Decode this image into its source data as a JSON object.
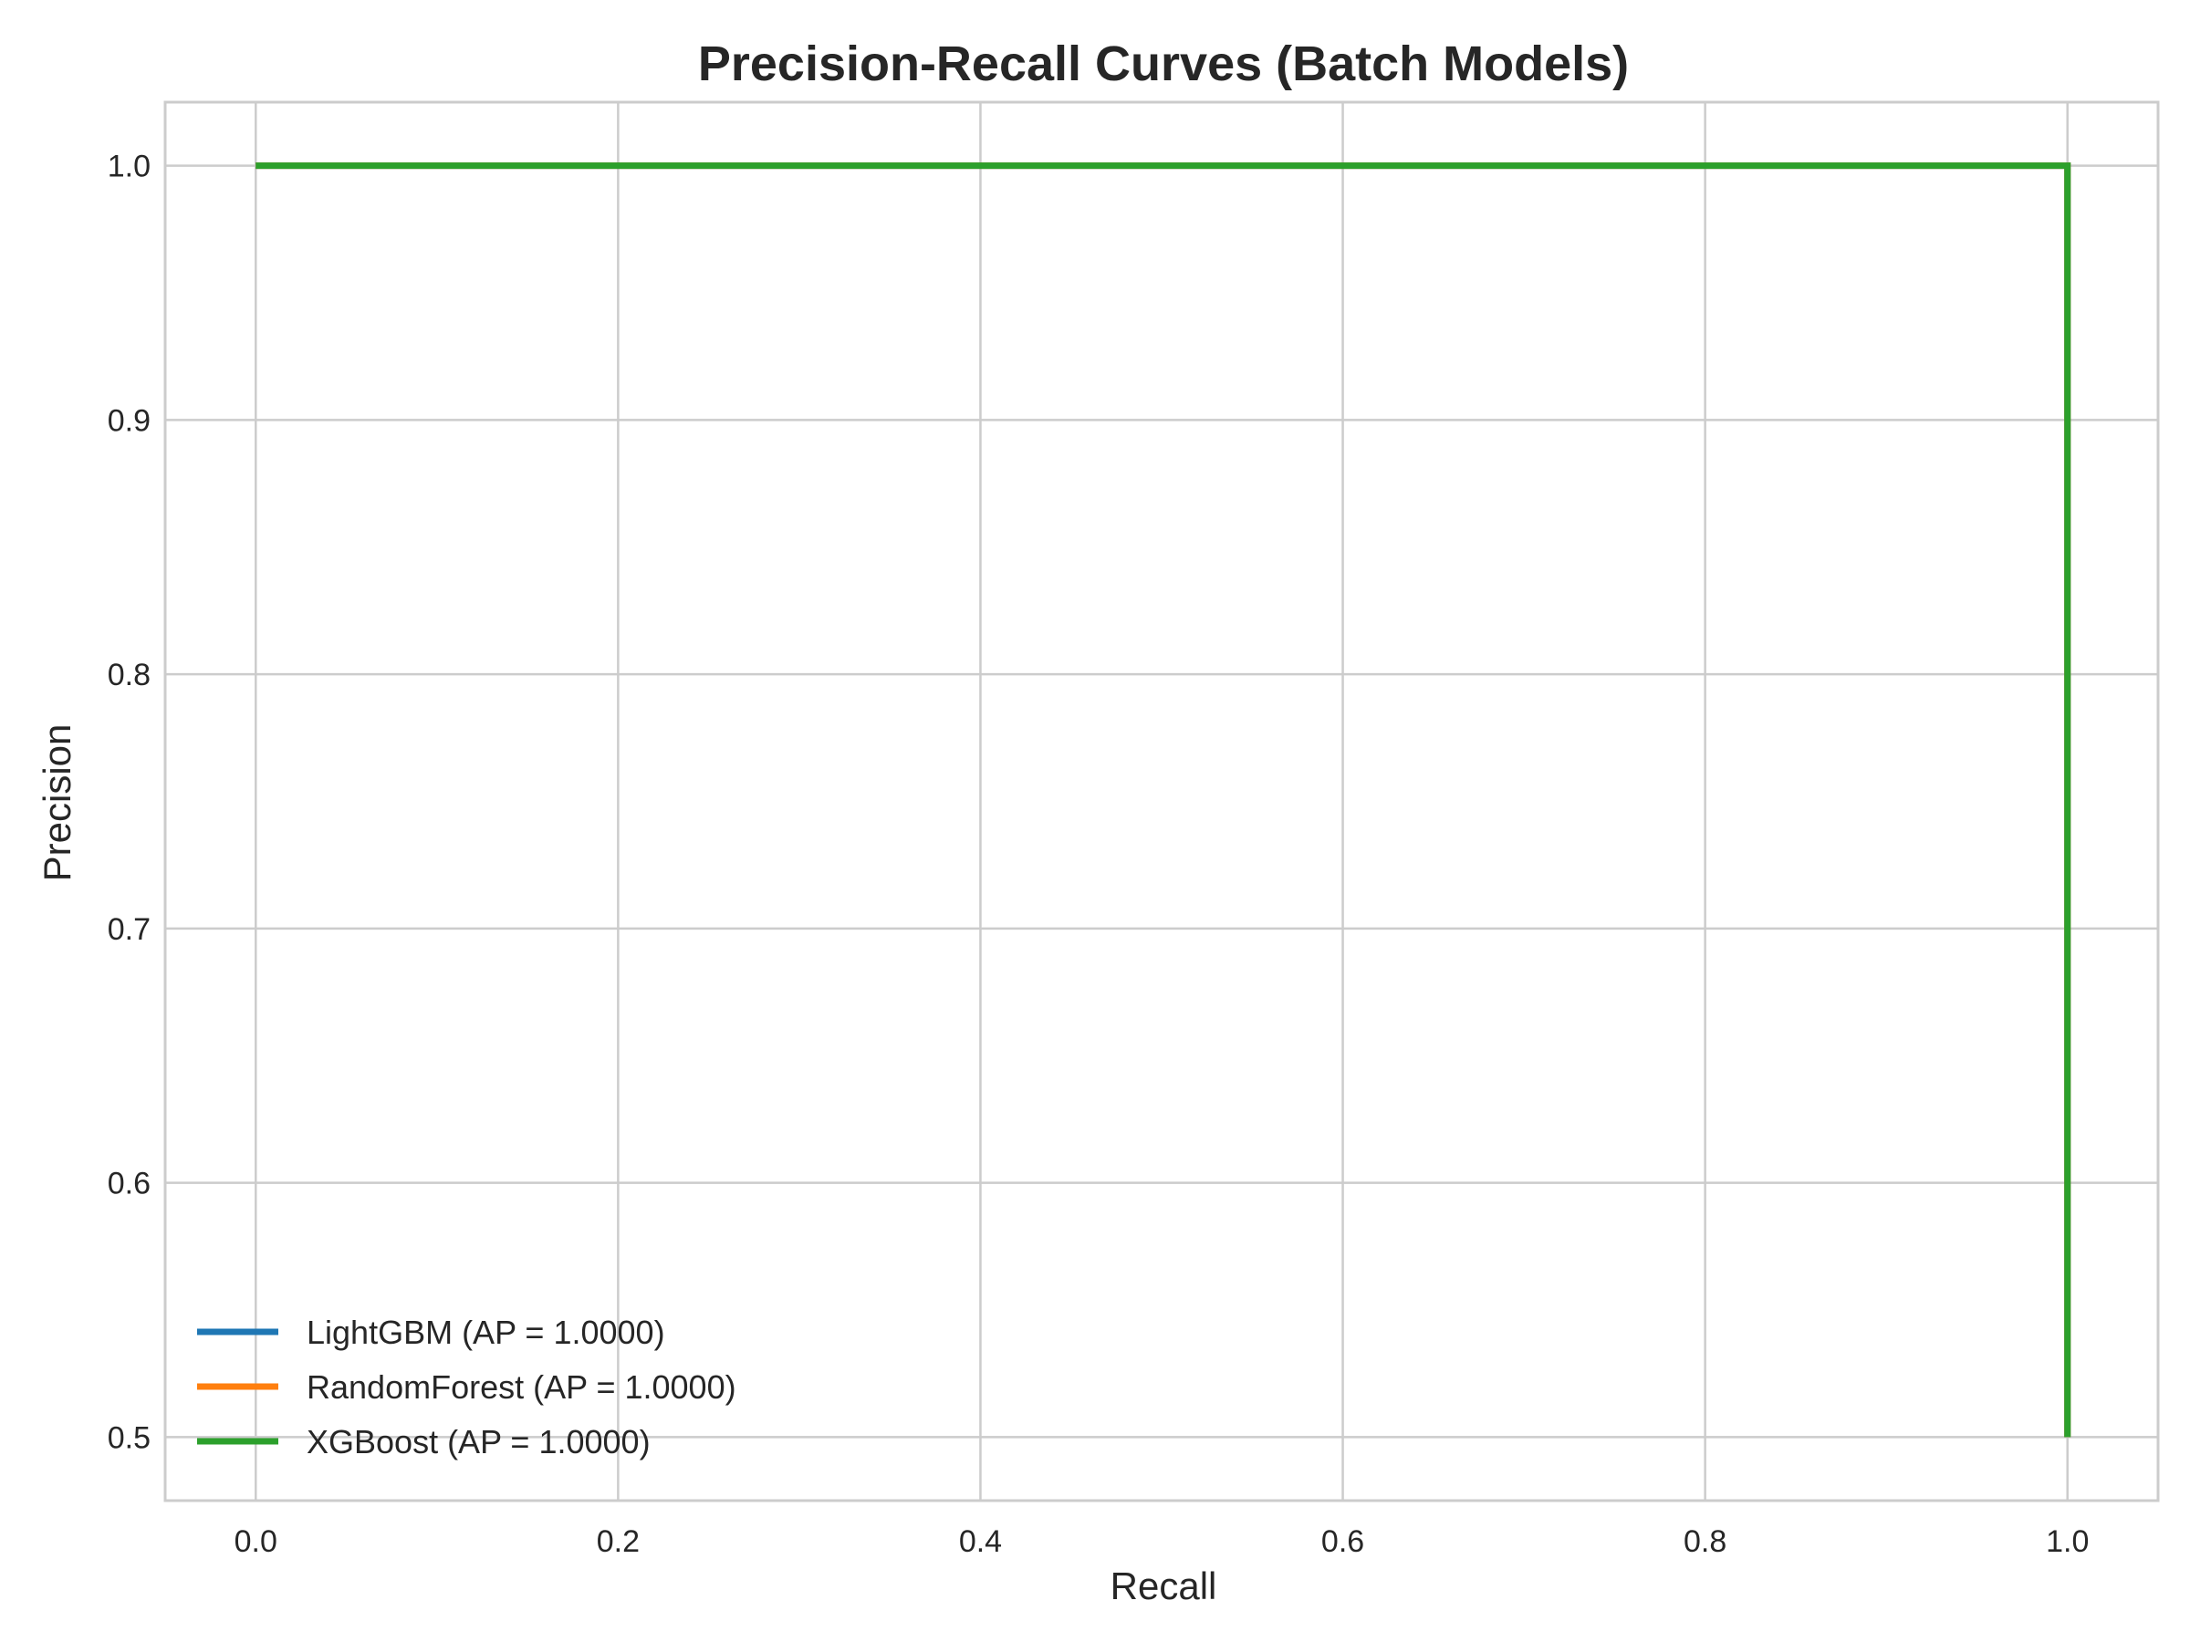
{
  "chart_data": {
    "type": "line",
    "title": "Precision-Recall Curves (Batch Models)",
    "xlabel": "Recall",
    "ylabel": "Precision",
    "xlim": [
      -0.05,
      1.05
    ],
    "ylim": [
      0.475,
      1.025
    ],
    "xticks": [
      0.0,
      0.2,
      0.4,
      0.6,
      0.8,
      1.0
    ],
    "xtick_labels": [
      "0.0",
      "0.2",
      "0.4",
      "0.6",
      "0.8",
      "1.0"
    ],
    "yticks": [
      0.5,
      0.6,
      0.7,
      0.8,
      0.9,
      1.0
    ],
    "ytick_labels": [
      "0.5",
      "0.6",
      "0.7",
      "0.8",
      "0.9",
      "1.0"
    ],
    "grid": true,
    "legend_position": "lower-left",
    "series": [
      {
        "name": "LightGBM (AP = 1.0000)",
        "color": "#1f77b4",
        "x": [
          0.0,
          1.0,
          1.0
        ],
        "y": [
          1.0,
          1.0,
          0.5
        ]
      },
      {
        "name": "RandomForest (AP = 1.0000)",
        "color": "#ff7f0e",
        "x": [
          0.0,
          1.0,
          1.0
        ],
        "y": [
          1.0,
          1.0,
          0.5
        ]
      },
      {
        "name": "XGBoost (AP = 1.0000)",
        "color": "#2ca02c",
        "x": [
          0.0,
          1.0,
          1.0
        ],
        "y": [
          1.0,
          1.0,
          0.5
        ]
      }
    ]
  }
}
